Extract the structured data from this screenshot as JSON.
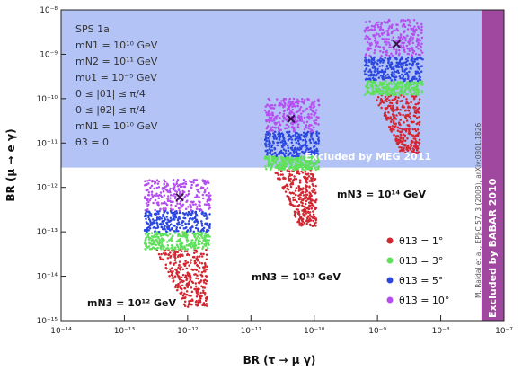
{
  "chart_data": {
    "type": "scatter",
    "xlabel": "BR (τ → μ γ)",
    "ylabel": "BR (μ → e γ)",
    "x_scale": "log",
    "y_scale": "log",
    "xlim": [
      1e-14,
      1e-07
    ],
    "ylim": [
      1e-15,
      1e-08
    ],
    "x_ticks": [
      {
        "value": 1e-14,
        "label": "10⁻¹⁴"
      },
      {
        "value": 1e-13,
        "label": "10⁻¹³"
      },
      {
        "value": 1e-12,
        "label": "10⁻¹²"
      },
      {
        "value": 1e-11,
        "label": "10⁻¹¹"
      },
      {
        "value": 1e-10,
        "label": "10⁻¹⁰"
      },
      {
        "value": 1e-09,
        "label": "10⁻⁹"
      },
      {
        "value": 1e-08,
        "label": "10⁻⁸"
      },
      {
        "value": 1e-07,
        "label": "10⁻⁷"
      }
    ],
    "y_ticks": [
      {
        "value": 1e-08,
        "label": "10⁻⁸"
      },
      {
        "value": 1e-09,
        "label": "10⁻⁹"
      },
      {
        "value": 1e-10,
        "label": "10⁻¹⁰"
      },
      {
        "value": 1e-11,
        "label": "10⁻¹¹"
      },
      {
        "value": 1e-12,
        "label": "10⁻¹²"
      },
      {
        "value": 1e-13,
        "label": "10⁻¹³"
      },
      {
        "value": 1e-14,
        "label": "10⁻¹⁴"
      },
      {
        "value": 1e-15,
        "label": "10⁻¹⁵"
      }
    ],
    "parameters": [
      "SPS 1a",
      "mN1 = 10¹⁰ GeV",
      "mN2 = 10¹¹ GeV",
      "mυ1 = 10⁻⁵ GeV",
      "0 ≤ |θ1| ≤ π/4",
      "0 ≤ |θ2| ≤ π/4",
      "mN1 = 10¹⁰ GeV",
      "θ3 = 0"
    ],
    "excluded_regions": [
      {
        "label": "Excluded by MEG 2011",
        "axis": "y",
        "above": 2.8e-12,
        "color": "#b3c3f6"
      },
      {
        "label": "Excluded by BABAR 2010",
        "axis": "x",
        "above": 4.4e-08,
        "color": "#a0479f"
      }
    ],
    "citation": "M. Raidal et al., EPJ-C 57, 3 (2008), arXiv:0801.1826",
    "series": [
      {
        "name": "θ13 = 1°",
        "color": "#d32630"
      },
      {
        "name": "θ13 = 3°",
        "color": "#5ee05a"
      },
      {
        "name": "θ13 = 5°",
        "color": "#2b47e0"
      },
      {
        "name": "θ13 = 10°",
        "color": "#b44ef0"
      }
    ],
    "clusters": [
      {
        "label": "mN3 = 10¹² GeV",
        "marker_x": 7.5e-13,
        "marker_y": 6e-13,
        "x_range": [
          2e-13,
          2.3e-12
        ],
        "bands": [
          {
            "series": "θ13 = 10°",
            "y_top": 1.5e-12,
            "y_bot": 3e-13
          },
          {
            "series": "θ13 = 5°",
            "y_top": 3e-13,
            "y_bot": 1e-13
          },
          {
            "series": "θ13 = 3°",
            "y_top": 1e-13,
            "y_bot": 4e-14
          },
          {
            "series": "θ13 = 1°",
            "y_top": 4e-14,
            "y_bot": 2e-15
          }
        ]
      },
      {
        "label": "mN3 = 10¹³ GeV",
        "marker_x": 4.3e-11,
        "marker_y": 3.5e-11,
        "x_range": [
          1.6e-11,
          1.2e-10
        ],
        "bands": [
          {
            "series": "θ13 = 10°",
            "y_top": 1e-10,
            "y_bot": 1.8e-11
          },
          {
            "series": "θ13 = 5°",
            "y_top": 1.8e-11,
            "y_bot": 5e-12
          },
          {
            "series": "θ13 = 3°",
            "y_top": 5e-12,
            "y_bot": 2.5e-12
          },
          {
            "series": "θ13 = 1°",
            "y_top": 2.5e-12,
            "y_bot": 1.3e-13
          }
        ]
      },
      {
        "label": "mN3 = 10¹⁴ GeV",
        "marker_x": 2e-09,
        "marker_y": 1.7e-09,
        "x_range": [
          6e-10,
          5.2e-09
        ],
        "bands": [
          {
            "series": "θ13 = 10°",
            "y_top": 6e-09,
            "y_bot": 9e-10
          },
          {
            "series": "θ13 = 5°",
            "y_top": 9e-10,
            "y_bot": 2.5e-10
          },
          {
            "series": "θ13 = 3°",
            "y_top": 2.5e-10,
            "y_bot": 1.2e-10
          },
          {
            "series": "θ13 = 1°",
            "y_top": 1.2e-10,
            "y_bot": 6e-12
          }
        ]
      }
    ]
  }
}
